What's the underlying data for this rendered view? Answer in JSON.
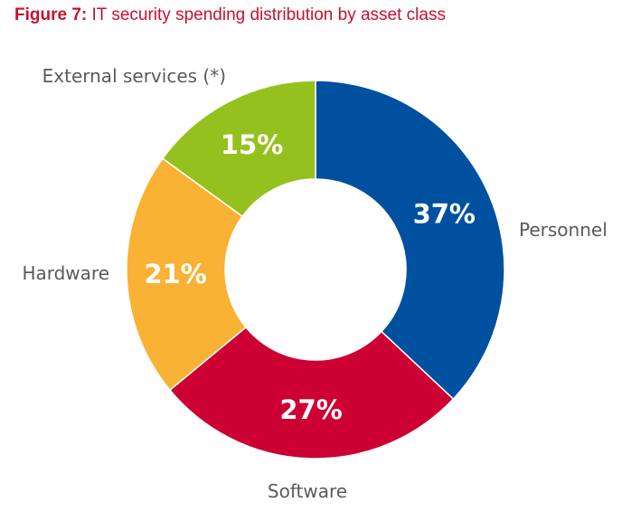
{
  "title": {
    "figure_label": "Figure 7:",
    "text": "IT security spending distribution by asset class"
  },
  "chart_data": {
    "type": "pie",
    "donut": true,
    "categories": [
      "Personnel",
      "Software",
      "Hardware",
      "External services (*)"
    ],
    "values": [
      37,
      27,
      21,
      15
    ],
    "value_labels": [
      "37%",
      "27%",
      "21%",
      "15%"
    ],
    "colors": [
      "#0050a0",
      "#cc0033",
      "#f9b233",
      "#95c11f"
    ],
    "start": "12 o'clock, clockwise",
    "legend": "none"
  }
}
